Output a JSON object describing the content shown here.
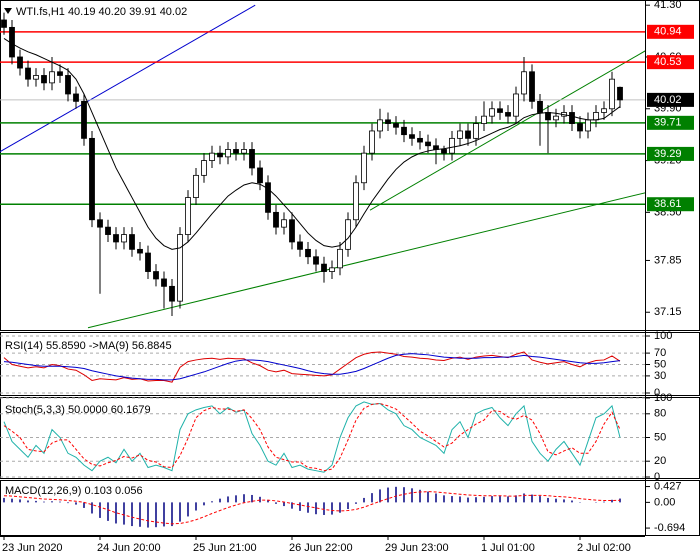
{
  "chart_data": [
    {
      "type": "candlestick",
      "title": "WTI.fs,H1  40.19 40.20 39.91 40.02",
      "categories": [
        "23 Jun 2020",
        null,
        null,
        null,
        null,
        null,
        null,
        null,
        null,
        null,
        null,
        null,
        "24 Jun 20:00",
        null,
        null,
        null,
        null,
        null,
        null,
        null,
        null,
        null,
        null,
        null,
        "25 Jun 21:00",
        null,
        null,
        null,
        null,
        null,
        null,
        null,
        null,
        null,
        null,
        null,
        "26 Jun 22:00",
        null,
        null,
        null,
        null,
        null,
        null,
        null,
        null,
        null,
        null,
        null,
        "29 Jun 23:00",
        null,
        null,
        null,
        null,
        null,
        null,
        null,
        null,
        null,
        null,
        null,
        "1 Jul 01:00",
        null,
        null,
        null,
        null,
        null,
        null,
        null,
        null,
        null,
        null,
        null,
        "2 Jul 02:00",
        null,
        null,
        null,
        null,
        null
      ],
      "open": [
        41.1,
        41.0,
        40.6,
        40.45,
        40.3,
        40.35,
        40.25,
        40.4,
        40.35,
        40.1,
        40.0,
        39.5,
        38.4,
        38.3,
        38.2,
        38.1,
        38.2,
        38.0,
        37.95,
        37.7,
        37.6,
        37.5,
        37.3,
        38.2,
        38.7,
        39.0,
        39.2,
        39.3,
        39.25,
        39.35,
        39.3,
        39.35,
        39.1,
        38.9,
        38.5,
        38.3,
        38.4,
        38.1,
        38.0,
        37.9,
        37.8,
        37.7,
        37.75,
        38.0,
        38.4,
        38.9,
        39.3,
        39.6,
        39.75,
        39.7,
        39.65,
        39.55,
        39.5,
        39.45,
        39.4,
        39.35,
        39.3,
        39.5,
        39.6,
        39.5,
        39.7,
        39.8,
        39.9,
        39.85,
        39.8,
        40.1,
        40.4,
        40.0,
        39.85,
        39.75,
        39.8,
        39.85,
        39.7,
        39.6,
        39.75,
        39.85,
        39.9,
        40.19
      ],
      "high": [
        41.2,
        41.1,
        40.7,
        40.55,
        40.45,
        40.45,
        40.6,
        40.5,
        40.45,
        40.2,
        40.1,
        39.6,
        38.5,
        38.4,
        38.3,
        38.3,
        38.3,
        38.1,
        38.05,
        37.8,
        37.7,
        37.6,
        38.3,
        38.8,
        39.1,
        39.3,
        39.4,
        39.4,
        39.45,
        39.45,
        39.45,
        39.45,
        39.2,
        39.0,
        38.6,
        38.5,
        38.5,
        38.2,
        38.1,
        38.0,
        37.9,
        37.85,
        38.1,
        38.5,
        39.0,
        39.4,
        39.7,
        39.9,
        39.85,
        39.8,
        39.75,
        39.65,
        39.6,
        39.55,
        39.5,
        39.4,
        39.6,
        39.7,
        39.7,
        39.8,
        40.0,
        40.0,
        40.0,
        39.95,
        40.2,
        40.6,
        40.5,
        40.1,
        39.95,
        39.9,
        39.95,
        39.95,
        39.8,
        39.85,
        39.95,
        40.0,
        40.4,
        40.2
      ],
      "low": [
        40.9,
        40.5,
        40.35,
        40.2,
        40.2,
        40.15,
        40.15,
        40.25,
        40.0,
        39.9,
        39.4,
        38.3,
        37.4,
        38.1,
        38.0,
        38.0,
        37.9,
        37.85,
        37.6,
        37.5,
        37.2,
        37.1,
        37.2,
        38.1,
        38.6,
        38.9,
        39.1,
        39.15,
        39.15,
        39.2,
        39.2,
        39.0,
        38.8,
        38.4,
        38.2,
        38.2,
        38.0,
        37.9,
        37.8,
        37.7,
        37.55,
        37.6,
        37.65,
        37.9,
        38.3,
        38.8,
        39.2,
        39.5,
        39.6,
        39.55,
        39.45,
        39.4,
        39.35,
        39.3,
        39.15,
        39.2,
        39.2,
        39.4,
        39.4,
        39.4,
        39.6,
        39.7,
        39.75,
        39.7,
        39.7,
        40.0,
        39.9,
        39.4,
        39.3,
        39.65,
        39.7,
        39.6,
        39.5,
        39.5,
        39.65,
        39.75,
        39.8,
        39.91
      ],
      "close": [
        41.0,
        40.6,
        40.45,
        40.3,
        40.35,
        40.25,
        40.4,
        40.35,
        40.1,
        40.0,
        39.5,
        38.4,
        38.3,
        38.2,
        38.1,
        38.2,
        38.0,
        37.95,
        37.7,
        37.6,
        37.5,
        37.3,
        38.2,
        38.7,
        39.0,
        39.2,
        39.3,
        39.25,
        39.35,
        39.3,
        39.35,
        39.1,
        38.9,
        38.5,
        38.3,
        38.4,
        38.1,
        38.0,
        37.9,
        37.8,
        37.7,
        37.75,
        38.0,
        38.4,
        38.9,
        39.3,
        39.6,
        39.75,
        39.7,
        39.65,
        39.55,
        39.5,
        39.45,
        39.4,
        39.35,
        39.3,
        39.5,
        39.6,
        39.5,
        39.7,
        39.8,
        39.9,
        39.85,
        39.8,
        40.1,
        40.4,
        40.0,
        39.85,
        39.75,
        39.8,
        39.85,
        39.7,
        39.6,
        39.75,
        39.85,
        39.9,
        40.3,
        40.02
      ],
      "up_color": "#ffffff",
      "down_color": "#000000",
      "moving_average": {
        "color": "#000000",
        "values": [
          40.85,
          40.78,
          40.72,
          40.67,
          40.63,
          40.58,
          40.53,
          40.48,
          40.42,
          40.3,
          40.1,
          39.85,
          39.6,
          39.35,
          39.1,
          38.9,
          38.7,
          38.5,
          38.3,
          38.15,
          38.05,
          38.0,
          38.02,
          38.1,
          38.22,
          38.35,
          38.48,
          38.6,
          38.72,
          38.8,
          38.87,
          38.9,
          38.88,
          38.82,
          38.72,
          38.6,
          38.48,
          38.35,
          38.22,
          38.12,
          38.05,
          38.03,
          38.05,
          38.15,
          38.3,
          38.48,
          38.65,
          38.8,
          38.95,
          39.08,
          39.18,
          39.25,
          39.3,
          39.33,
          39.35,
          39.36,
          39.38,
          39.4,
          39.43,
          39.47,
          39.52,
          39.57,
          39.62,
          39.65,
          39.7,
          39.78,
          39.82,
          39.84,
          39.85,
          39.84,
          39.82,
          39.8,
          39.77,
          39.75,
          39.75,
          39.77,
          39.85,
          39.93
        ]
      },
      "trendlines": [
        {
          "color": "#0000cd",
          "x": [
            -0.5,
            31.4
          ],
          "y": [
            39.32,
            41.3
          ]
        },
        {
          "color": "#008000",
          "x": [
            10.5,
            80.75
          ],
          "y": [
            36.94,
            38.78
          ]
        },
        {
          "color": "#008000",
          "x": [
            45.75,
            80.75
          ],
          "y": [
            38.53,
            40.72
          ]
        }
      ],
      "levels": [
        {
          "value": 40.94,
          "color": "#ff0000"
        },
        {
          "value": 40.53,
          "color": "#ff0000"
        },
        {
          "value": 40.02,
          "color": "#000000"
        },
        {
          "value": 39.71,
          "color": "#008000"
        },
        {
          "value": 39.29,
          "color": "#008000"
        },
        {
          "value": 38.61,
          "color": "#008000"
        }
      ],
      "ylim": [
        36.91,
        41.37
      ],
      "yticks": [
        {
          "value": 41.3,
          "label": "41.30"
        },
        {
          "value": 40.6,
          "label": "40.60"
        },
        {
          "value": 39.9,
          "label": "39.90"
        },
        {
          "value": 39.2,
          "label": "39.20"
        },
        {
          "value": 38.5,
          "label": "38.50"
        },
        37.85,
        37.15
      ],
      "grid": false
    },
    {
      "type": "line",
      "title": "RSI(14) 55.8590 ->MA(9) 56.8845",
      "series": [
        {
          "color": "#dd0000",
          "values": [
            62,
            50,
            47,
            44,
            46,
            44,
            50,
            48,
            42,
            40,
            32,
            22,
            25,
            24,
            23,
            27,
            24,
            25,
            21,
            22,
            22,
            19,
            45,
            55,
            58,
            60,
            61,
            59,
            61,
            60,
            60,
            53,
            48,
            40,
            37,
            40,
            34,
            33,
            32,
            31,
            30,
            32,
            42,
            52,
            62,
            68,
            71,
            72,
            70,
            68,
            64,
            63,
            61,
            60,
            58,
            57,
            61,
            63,
            59,
            63,
            65,
            66,
            64,
            62,
            68,
            72,
            58,
            54,
            51,
            53,
            55,
            50,
            46,
            53,
            57,
            58,
            65,
            55.859
          ]
        },
        {
          "color": "#0000cd",
          "values": [
            55,
            54,
            52,
            50,
            48,
            47,
            47,
            47,
            46,
            45,
            43,
            39,
            36,
            33,
            30,
            28,
            26,
            25,
            24,
            24,
            23,
            23,
            25,
            29,
            33,
            37,
            42,
            47,
            52,
            56,
            58,
            58,
            57,
            55,
            52,
            49,
            46,
            43,
            39,
            36,
            34,
            33,
            33,
            35,
            38,
            43,
            49,
            55,
            61,
            66,
            68,
            69,
            68,
            67,
            65,
            63,
            62,
            61,
            61,
            61,
            62,
            62,
            63,
            63,
            64,
            66,
            64,
            63,
            61,
            59,
            57,
            55,
            53,
            52,
            52,
            53,
            55,
            56.8845
          ]
        }
      ],
      "ylim": [
        0,
        100
      ],
      "yticks": [
        100,
        70,
        50,
        30,
        0
      ],
      "grid": true
    },
    {
      "type": "line",
      "title": "Stoch(5,3,3) 50.0000 60.1679",
      "series": [
        {
          "color": "#20b2aa",
          "values": [
            70,
            45,
            35,
            25,
            40,
            30,
            60,
            50,
            30,
            25,
            15,
            8,
            20,
            25,
            18,
            35,
            20,
            30,
            12,
            15,
            12,
            8,
            60,
            80,
            85,
            88,
            90,
            80,
            88,
            82,
            85,
            55,
            40,
            20,
            15,
            30,
            12,
            15,
            10,
            8,
            6,
            15,
            50,
            75,
            90,
            95,
            92,
            93,
            85,
            80,
            65,
            60,
            50,
            45,
            40,
            30,
            60,
            70,
            50,
            80,
            85,
            88,
            75,
            65,
            80,
            90,
            45,
            30,
            20,
            35,
            45,
            30,
            15,
            45,
            75,
            80,
            90,
            50
          ]
        },
        {
          "color": "#ff0000",
          "dash": true,
          "values": [
            65,
            58,
            50,
            35,
            33,
            32,
            43,
            47,
            47,
            35,
            23,
            16,
            14,
            18,
            21,
            26,
            24,
            28,
            21,
            19,
            13,
            12,
            27,
            49,
            75,
            84,
            88,
            86,
            86,
            83,
            85,
            74,
            60,
            38,
            25,
            22,
            19,
            19,
            12,
            11,
            8,
            10,
            24,
            47,
            72,
            87,
            92,
            93,
            90,
            86,
            77,
            68,
            58,
            52,
            45,
            38,
            43,
            53,
            60,
            67,
            72,
            84,
            83,
            76,
            73,
            78,
            72,
            55,
            32,
            28,
            33,
            37,
            30,
            30,
            45,
            67,
            82,
            60.1679
          ]
        }
      ],
      "ylim": [
        0,
        100
      ],
      "yticks": [
        100,
        80,
        50,
        20,
        0
      ],
      "grid": true
    },
    {
      "type": "macd",
      "title": "MACD(12,26,9) 0.103 0.056",
      "series": [
        {
          "color": "#000080",
          "values": [
            0.12,
            0.1,
            0.08,
            0.05,
            0.04,
            0.02,
            0.03,
            0.02,
            -0.02,
            -0.06,
            -0.15,
            -0.3,
            -0.42,
            -0.5,
            -0.57,
            -0.6,
            -0.64,
            -0.66,
            -0.68,
            -0.67,
            -0.65,
            -0.64,
            -0.52,
            -0.38,
            -0.22,
            -0.08,
            0.03,
            0.1,
            0.16,
            0.19,
            0.22,
            0.2,
            0.15,
            0.06,
            -0.04,
            -0.1,
            -0.17,
            -0.23,
            -0.28,
            -0.32,
            -0.34,
            -0.33,
            -0.28,
            -0.18,
            -0.04,
            0.12,
            0.25,
            0.35,
            0.4,
            0.42,
            0.41,
            0.38,
            0.34,
            0.29,
            0.24,
            0.19,
            0.17,
            0.16,
            0.13,
            0.14,
            0.15,
            0.17,
            0.17,
            0.16,
            0.19,
            0.24,
            0.21,
            0.17,
            0.12,
            0.1,
            0.08,
            0.05,
            0.01,
            0.0,
            0.01,
            0.02,
            0.07,
            0.103
          ]
        },
        {
          "color": "#ff0000",
          "dash": true,
          "values": [
            0.18,
            0.17,
            0.15,
            0.13,
            0.11,
            0.09,
            0.08,
            0.07,
            0.05,
            0.03,
            0.0,
            -0.06,
            -0.13,
            -0.2,
            -0.28,
            -0.34,
            -0.4,
            -0.45,
            -0.5,
            -0.53,
            -0.56,
            -0.58,
            -0.57,
            -0.53,
            -0.47,
            -0.39,
            -0.3,
            -0.22,
            -0.14,
            -0.07,
            -0.01,
            0.03,
            0.06,
            0.06,
            0.04,
            0.01,
            -0.03,
            -0.07,
            -0.11,
            -0.15,
            -0.19,
            -0.22,
            -0.23,
            -0.22,
            -0.19,
            -0.13,
            -0.05,
            0.03,
            0.1,
            0.17,
            0.22,
            0.26,
            0.28,
            0.29,
            0.28,
            0.26,
            0.24,
            0.22,
            0.2,
            0.19,
            0.18,
            0.18,
            0.18,
            0.17,
            0.17,
            0.19,
            0.19,
            0.19,
            0.18,
            0.16,
            0.15,
            0.13,
            0.1,
            0.08,
            0.06,
            0.05,
            0.05,
            0.056
          ]
        }
      ],
      "ylim": [
        -0.8,
        0.55
      ],
      "yticks": [
        0.427,
        {
          "value": 0,
          "label": "0.00"
        },
        -0.694
      ],
      "grid": false
    }
  ]
}
